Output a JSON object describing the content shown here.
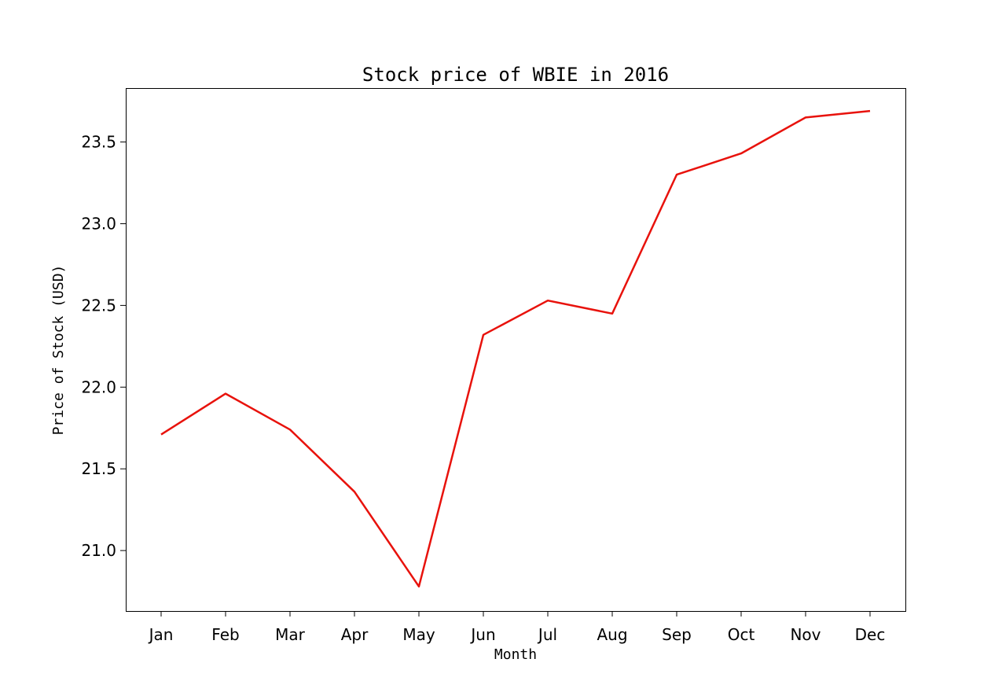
{
  "chart_data": {
    "type": "line",
    "title": "Stock price of WBIE in 2016",
    "xlabel": "Month",
    "ylabel": "Price of Stock (USD)",
    "categories": [
      "Jan",
      "Feb",
      "Mar",
      "Apr",
      "May",
      "Jun",
      "Jul",
      "Aug",
      "Sep",
      "Oct",
      "Nov",
      "Dec"
    ],
    "values": [
      21.71,
      21.96,
      21.74,
      21.36,
      20.78,
      22.32,
      22.53,
      22.45,
      23.3,
      23.43,
      23.65,
      23.69
    ],
    "yticks": [
      21.0,
      21.5,
      22.0,
      22.5,
      23.0,
      23.5
    ],
    "ytick_labels": [
      "21.0",
      "21.5",
      "22.0",
      "22.5",
      "23.0",
      "23.5"
    ],
    "ylim": [
      20.63,
      23.83
    ],
    "grid": false,
    "line_color": "#e8120c"
  }
}
